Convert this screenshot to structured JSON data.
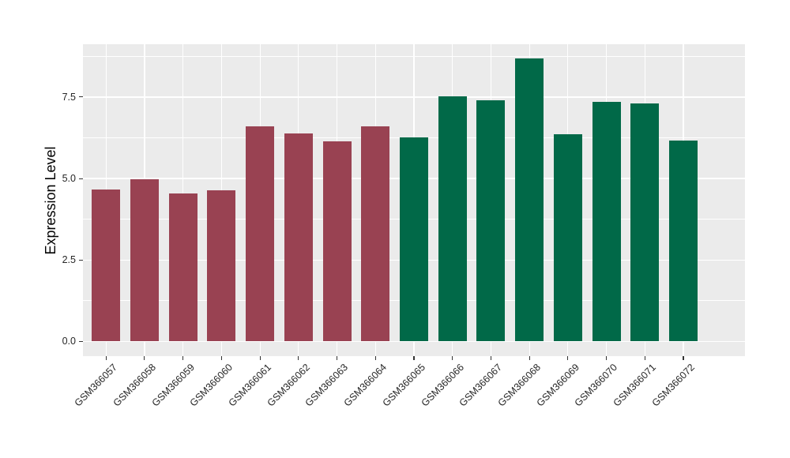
{
  "chart_data": {
    "type": "bar",
    "title": "",
    "ylabel": "Expression Level",
    "xlabel": "",
    "categories": [
      "GSM366057",
      "GSM366058",
      "GSM366059",
      "GSM366060",
      "GSM366061",
      "GSM366062",
      "GSM366063",
      "GSM366064",
      "GSM366065",
      "GSM366066",
      "GSM366067",
      "GSM366068",
      "GSM366069",
      "GSM366070",
      "GSM366071",
      "GSM366072"
    ],
    "values": [
      4.67,
      4.97,
      4.53,
      4.65,
      6.6,
      6.39,
      6.13,
      6.61,
      6.25,
      7.52,
      7.41,
      8.68,
      6.37,
      7.34,
      7.3,
      6.17
    ],
    "groups": [
      "group1",
      "group1",
      "group1",
      "group1",
      "group1",
      "group1",
      "group1",
      "group1",
      "group2",
      "group2",
      "group2",
      "group2",
      "group2",
      "group2",
      "group2",
      "group2"
    ],
    "group_colors": {
      "group1": "#994252",
      "group2": "#016948"
    },
    "yticks": [
      {
        "value": 0.0,
        "label": "0.0"
      },
      {
        "value": 2.5,
        "label": "2.5"
      },
      {
        "value": 5.0,
        "label": "5.0"
      },
      {
        "value": 7.5,
        "label": "7.5"
      }
    ],
    "minor_yticks": [
      1.25,
      3.75,
      6.25,
      8.75
    ],
    "ylim": [
      -0.45,
      9.12
    ],
    "grid": true,
    "legend": "none",
    "panel_background": "#EBEBEB",
    "grid_color": "#FFFFFF",
    "tick_color": "#333333",
    "label_color": "#262626"
  }
}
